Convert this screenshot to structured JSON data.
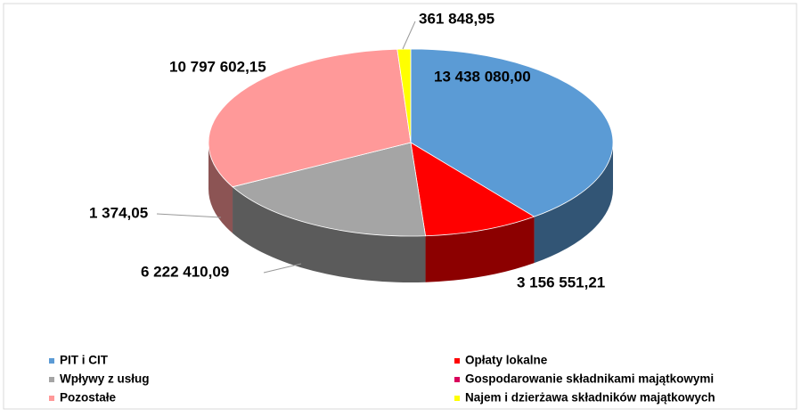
{
  "chart_data": {
    "type": "pie3d",
    "categories": [
      "PIT i CIT",
      "Opłaty lokalne",
      "Wpływy z usług",
      "Gospodarowanie składnikami majątkowymi",
      "Pozostałe",
      "Najem i dzierżawa składników majątkowych"
    ],
    "values": [
      13438080.0,
      3156551.21,
      6222410.09,
      1374.05,
      10797602.15,
      361848.95
    ],
    "value_labels": [
      "13 438 080,00",
      "3 156 551,21",
      "6 222 410,09",
      "1 374,05",
      "10 797 602,15",
      "361 848,95"
    ],
    "colors": [
      "#5b9bd5",
      "#ff0000",
      "#a5a5a5",
      "#d9005b",
      "#ff9999",
      "#ffff00"
    ],
    "legend": "bottom"
  }
}
